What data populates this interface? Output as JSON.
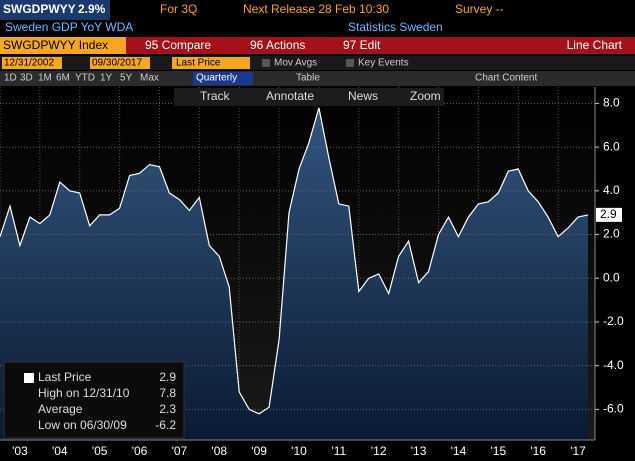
{
  "ui": {
    "ticker": "SWGDPWYY",
    "last": "2.9%",
    "period": "For 3Q",
    "next_release": "Next Release 28 Feb 10:30",
    "survey": "Survey --",
    "description": "Sweden GDP YoY WDA",
    "source": "Statistics Sweden",
    "security": "SWGDPWYY Index",
    "compare": "95 Compare",
    "actions": "96 Actions",
    "edit": "97 Edit",
    "view": "Line Chart",
    "start_date": "12/31/2002",
    "end_date": "09/30/2017",
    "field": "Last Price",
    "mov_avgs": "Mov Avgs",
    "key_events": "Key Events",
    "ranges": [
      "1D",
      "3D",
      "1M",
      "6M",
      "YTD",
      "1Y",
      "5Y",
      "Max"
    ],
    "frequency": "Quarterly",
    "table": "Table",
    "chart_content": "Chart Content",
    "tools": [
      "Track",
      "Annotate",
      "News",
      "Zoom"
    ],
    "legend": [
      {
        "label": "Last Price",
        "value": "2.9"
      },
      {
        "label": "High on 12/31/10",
        "value": "7.8"
      },
      {
        "label": "Average",
        "value": "2.3"
      },
      {
        "label": "Low on 06/30/09",
        "value": "-6.2"
      }
    ]
  },
  "chart_data": {
    "type": "area",
    "categories": [
      null,
      null,
      "'03",
      null,
      null,
      null,
      "'04",
      null,
      null,
      null,
      "'05",
      null,
      null,
      null,
      "'06",
      null,
      null,
      null,
      "'07",
      null,
      null,
      null,
      "'08",
      null,
      null,
      null,
      "'09",
      null,
      null,
      null,
      "'10",
      null,
      null,
      null,
      "'11",
      null,
      null,
      null,
      "'12",
      null,
      null,
      null,
      "'13",
      null,
      null,
      null,
      "'14",
      null,
      null,
      null,
      "'15",
      null,
      null,
      null,
      "'16",
      null,
      null,
      null,
      "'17",
      null
    ],
    "series": [
      {
        "name": "Last Price",
        "color": "#ffffff",
        "values": [
          1.9,
          3.3,
          1.5,
          2.8,
          2.5,
          2.9,
          4.4,
          4.0,
          3.9,
          2.4,
          2.9,
          2.9,
          3.2,
          4.7,
          4.8,
          5.2,
          5.1,
          3.9,
          3.6,
          3.1,
          3.7,
          1.5,
          1.0,
          -0.4,
          -5.2,
          -6.0,
          -6.2,
          -5.9,
          -2.8,
          3.0,
          5.0,
          6.2,
          7.8,
          5.5,
          3.4,
          3.3,
          -0.6,
          0.0,
          0.2,
          -0.7,
          1.0,
          1.7,
          -0.2,
          0.3,
          2.0,
          2.8,
          1.9,
          2.8,
          3.4,
          3.5,
          3.9,
          4.9,
          5.0,
          4.0,
          3.5,
          2.8,
          1.9,
          2.3,
          2.8,
          2.9
        ]
      }
    ],
    "ylim": [
      -7.4,
      8.75
    ],
    "yticks": [
      {
        "value": -6,
        "label": "-6.0"
      },
      {
        "value": -4,
        "label": "-4.0"
      },
      {
        "value": -2,
        "label": "-2.0"
      },
      {
        "value": 0,
        "label": "0.0"
      },
      {
        "value": 2,
        "label": "2.0"
      },
      {
        "value": 4,
        "label": "4.0"
      },
      {
        "value": 6,
        "label": "6.0"
      },
      {
        "value": 8,
        "label": "8.0"
      }
    ],
    "grid": true
  }
}
